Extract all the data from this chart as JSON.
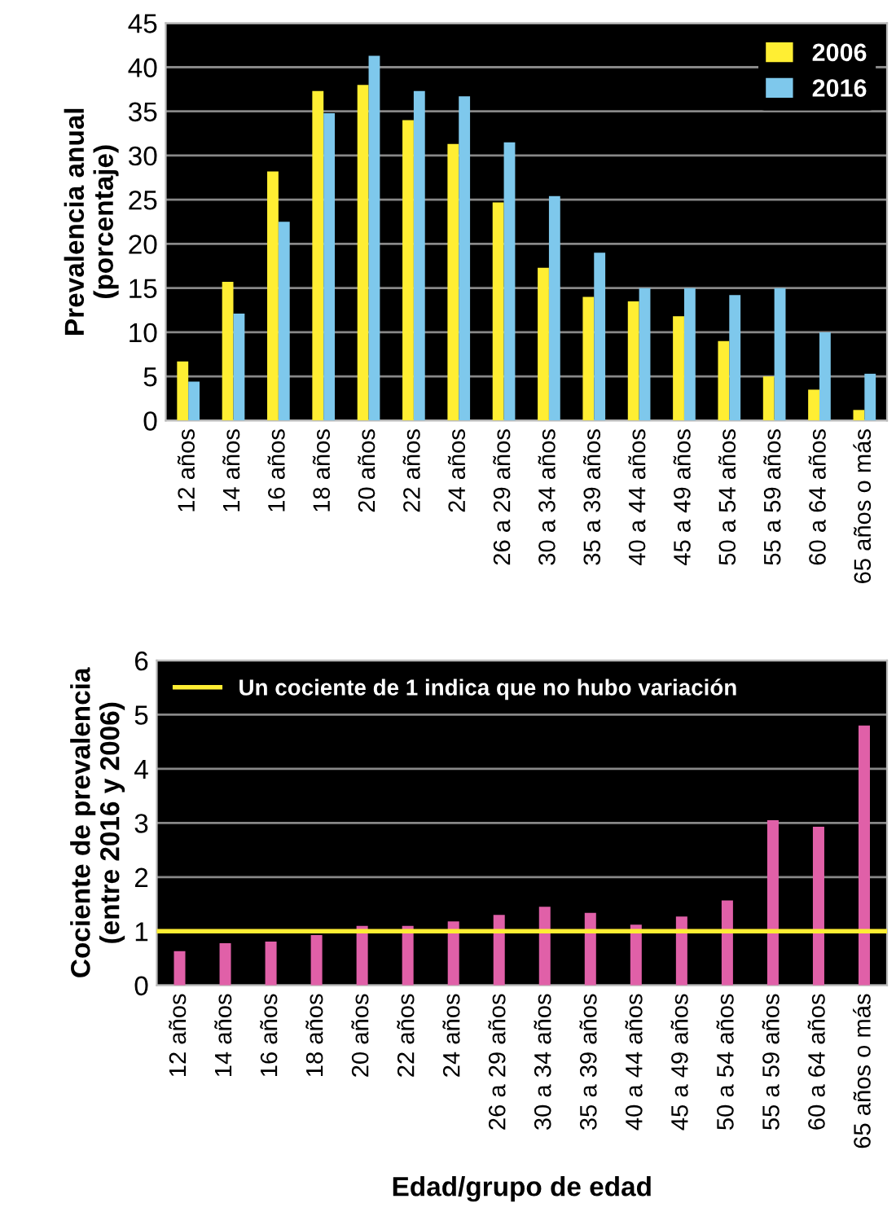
{
  "chart_data": [
    {
      "type": "bar",
      "ylabel": "Prevalencia anual\n(porcentaje)",
      "categories": [
        "12 años",
        "14 años",
        "16 años",
        "18 años",
        "20 años",
        "22 años",
        "24 años",
        "26 a 29 años",
        "30 a 34 años",
        "35 a 39 años",
        "40 a 44 años",
        "45 a 49 años",
        "50 a 54 años",
        "55 a 59 años",
        "60 a 64 años",
        "65 años o más"
      ],
      "series": [
        {
          "name": "2006",
          "color": "#ffee33",
          "values": [
            6.7,
            15.7,
            28.2,
            37.3,
            38.0,
            34.0,
            31.3,
            24.7,
            17.3,
            14.0,
            13.5,
            11.8,
            9.0,
            5.0,
            3.5,
            1.2
          ]
        },
        {
          "name": "2016",
          "color": "#7ec8ec",
          "values": [
            4.4,
            12.1,
            22.5,
            34.8,
            41.3,
            37.3,
            36.7,
            31.5,
            25.4,
            19.0,
            15.0,
            15.0,
            14.2,
            15.0,
            10.0,
            5.3
          ]
        }
      ],
      "ylim": [
        0,
        45
      ],
      "yticks": [
        0,
        5,
        10,
        15,
        20,
        25,
        30,
        35,
        40,
        45
      ],
      "grid": "y",
      "legend": "top right"
    },
    {
      "type": "bar",
      "ylabel": "Cociente de prevalencia\n(entre 2016 y 2006)",
      "xlabel": "Edad/grupo de edad",
      "categories": [
        "12 años",
        "14 años",
        "16 años",
        "18 años",
        "20 años",
        "22 años",
        "24 años",
        "26 a 29 años",
        "30 a 34 años",
        "35 a 39 años",
        "40 a 44 años",
        "45 a 49 años",
        "50 a 54 años",
        "55 a 59 años",
        "60 a 64 años",
        "65 años o más"
      ],
      "series": [
        {
          "color": "#e060a8",
          "values": [
            0.63,
            0.78,
            0.81,
            0.93,
            1.1,
            1.1,
            1.18,
            1.3,
            1.45,
            1.34,
            1.12,
            1.27,
            1.57,
            3.05,
            2.93,
            4.8
          ]
        }
      ],
      "ref_lines": [
        {
          "axis": "y",
          "value": 1,
          "label": "Un cociente de 1 indica que no hubo variación",
          "color": "#ffee33"
        }
      ],
      "ylim": [
        0,
        6
      ],
      "yticks": [
        0,
        1,
        2,
        3,
        4,
        5,
        6
      ],
      "grid": "y",
      "legend": "top left"
    }
  ]
}
